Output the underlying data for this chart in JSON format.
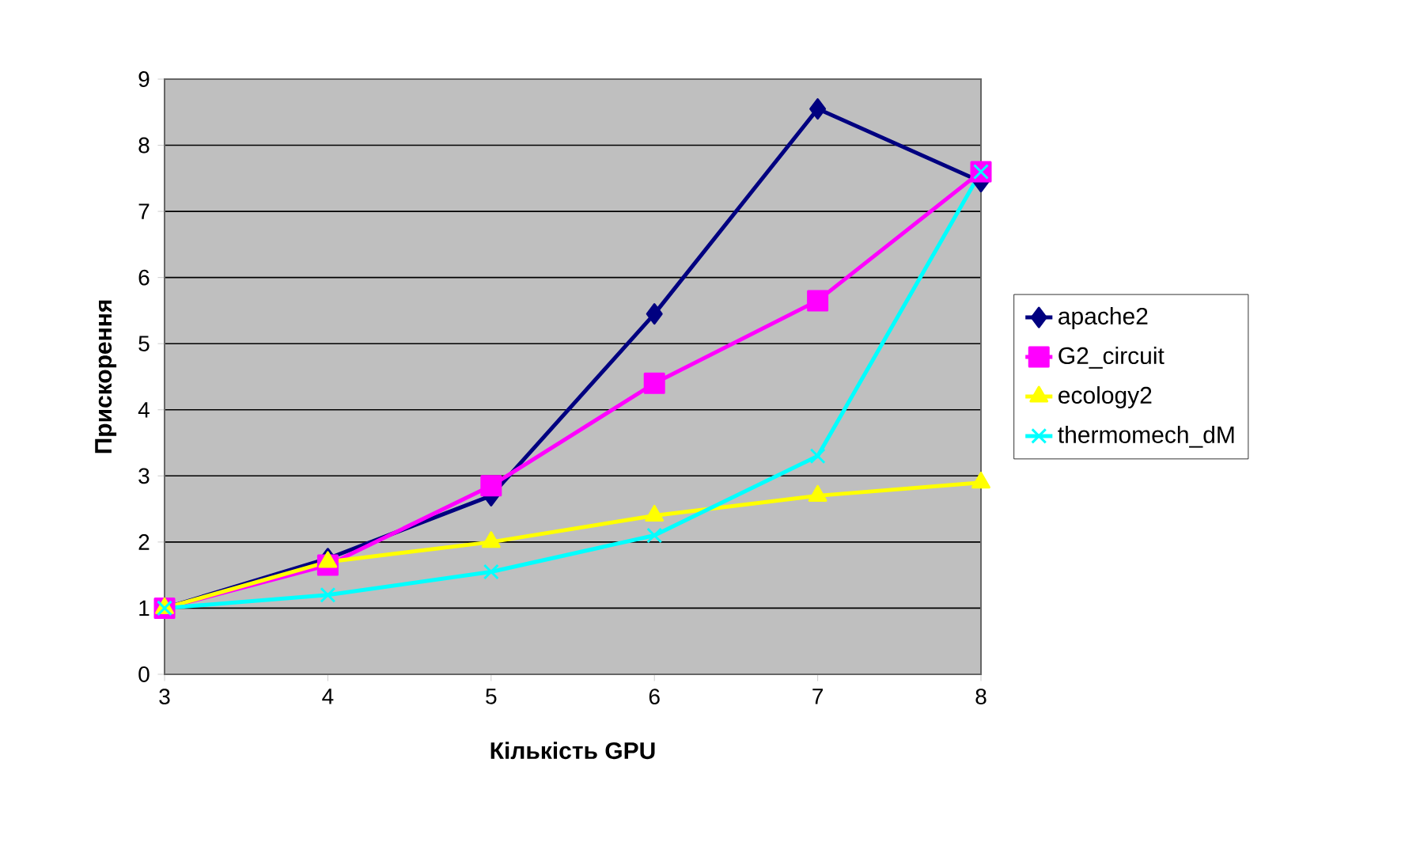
{
  "chart_data": {
    "type": "line",
    "xlabel": "Кількість GPU",
    "ylabel": "Прискорення",
    "categories": [
      "3",
      "4",
      "5",
      "6",
      "7",
      "8"
    ],
    "series": [
      {
        "name": "apache2",
        "color": "#000080",
        "marker": "diamond",
        "values": [
          1,
          1.75,
          2.7,
          5.45,
          8.55,
          7.45
        ]
      },
      {
        "name": "G2_circuit",
        "color": "#ff00ff",
        "marker": "square",
        "values": [
          1,
          1.65,
          2.85,
          4.4,
          5.65,
          7.6
        ]
      },
      {
        "name": "ecology2",
        "color": "#ffff00",
        "marker": "triangle",
        "values": [
          1,
          1.7,
          2.0,
          2.4,
          2.7,
          2.9
        ]
      },
      {
        "name": "thermomech_dM",
        "color": "#00ffff",
        "marker": "cross",
        "values": [
          1,
          1.2,
          1.55,
          2.1,
          3.3,
          7.6
        ]
      }
    ],
    "ylim": [
      0,
      9
    ],
    "yticks": [
      0,
      1,
      2,
      3,
      4,
      5,
      6,
      7,
      8,
      9
    ],
    "grid": "y",
    "legend": "right",
    "line_style": "solid"
  }
}
